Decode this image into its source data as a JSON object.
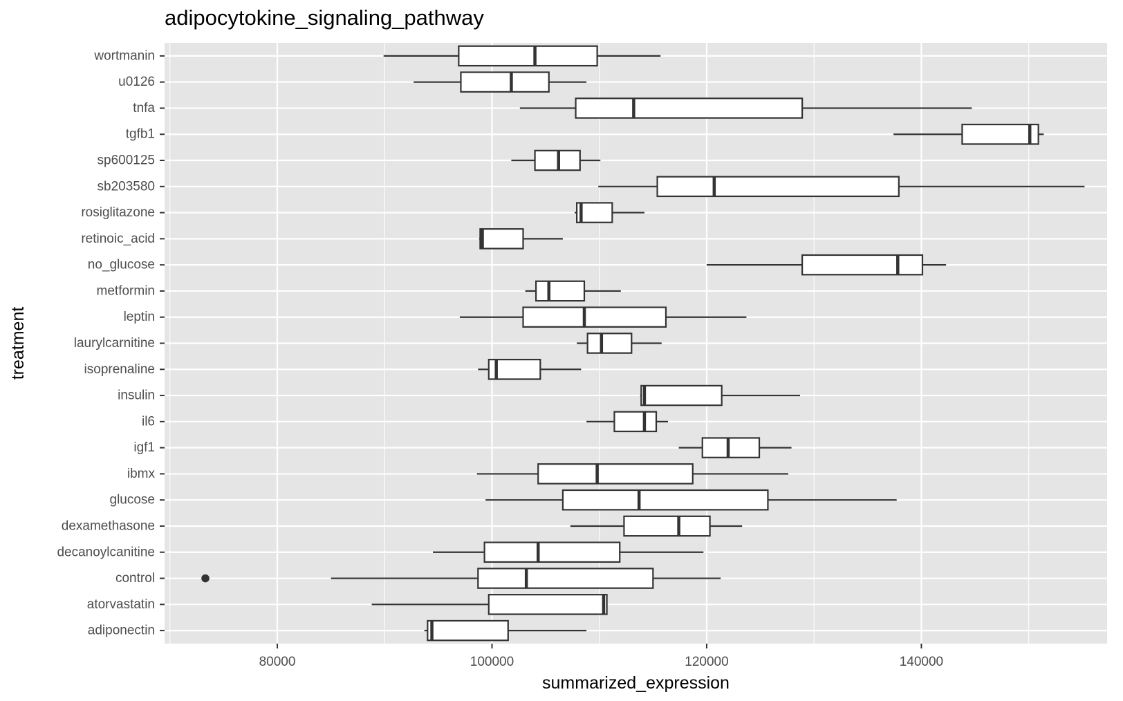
{
  "chart_data": {
    "type": "boxplot",
    "orientation": "horizontal",
    "title": "adipocytokine_signaling_pathway",
    "xlabel": "summarized_expression",
    "ylabel": "treatment",
    "xlim": [
      69500,
      157300
    ],
    "xticks": [
      80000,
      100000,
      120000,
      140000
    ],
    "xtick_labels": [
      "80000",
      "100000",
      "120000",
      "140000"
    ],
    "grid": true,
    "colors": {
      "panel": "#e5e5e5",
      "grid": "#ffffff",
      "box_stroke": "#333333",
      "box_fill": "#ffffff"
    },
    "categories": [
      "adiponectin",
      "atorvastatin",
      "control",
      "decanoylcanitine",
      "dexamethasone",
      "glucose",
      "ibmx",
      "igf1",
      "il6",
      "insulin",
      "isoprenaline",
      "laurylcarnitine",
      "leptin",
      "metformin",
      "no_glucose",
      "retinoic_acid",
      "rosiglitazone",
      "sb203580",
      "sp600125",
      "tgfb1",
      "tnfa",
      "u0126",
      "wortmanin"
    ],
    "boxes": [
      {
        "category": "adiponectin",
        "whisker_low": 93700,
        "q1": 94000,
        "median": 94400,
        "q3": 101500,
        "whisker_high": 108800,
        "outliers": []
      },
      {
        "category": "atorvastatin",
        "whisker_low": 88800,
        "q1": 99700,
        "median": 110400,
        "q3": 110700,
        "whisker_high": 110700,
        "outliers": []
      },
      {
        "category": "control",
        "whisker_low": 85000,
        "q1": 98700,
        "median": 103200,
        "q3": 115000,
        "whisker_high": 121300,
        "outliers": [
          73300
        ]
      },
      {
        "category": "decanoylcanitine",
        "whisker_low": 94500,
        "q1": 99300,
        "median": 104300,
        "q3": 111900,
        "whisker_high": 119700,
        "outliers": []
      },
      {
        "category": "dexamethasone",
        "whisker_low": 107300,
        "q1": 112300,
        "median": 117400,
        "q3": 120300,
        "whisker_high": 123300,
        "outliers": []
      },
      {
        "category": "glucose",
        "whisker_low": 99400,
        "q1": 106600,
        "median": 113700,
        "q3": 125700,
        "whisker_high": 137700,
        "outliers": []
      },
      {
        "category": "ibmx",
        "whisker_low": 98600,
        "q1": 104300,
        "median": 109800,
        "q3": 118700,
        "whisker_high": 127600,
        "outliers": []
      },
      {
        "category": "igf1",
        "whisker_low": 117400,
        "q1": 119600,
        "median": 122000,
        "q3": 124900,
        "whisker_high": 127900,
        "outliers": []
      },
      {
        "category": "il6",
        "whisker_low": 108800,
        "q1": 111400,
        "median": 114200,
        "q3": 115300,
        "whisker_high": 116400,
        "outliers": []
      },
      {
        "category": "insulin",
        "whisker_low": 113800,
        "q1": 113900,
        "median": 114200,
        "q3": 121400,
        "whisker_high": 128700,
        "outliers": []
      },
      {
        "category": "isoprenaline",
        "whisker_low": 98700,
        "q1": 99700,
        "median": 100400,
        "q3": 104500,
        "whisker_high": 108300,
        "outliers": []
      },
      {
        "category": "laurylcarnitine",
        "whisker_low": 107900,
        "q1": 108900,
        "median": 110200,
        "q3": 113000,
        "whisker_high": 115800,
        "outliers": []
      },
      {
        "category": "leptin",
        "whisker_low": 97000,
        "q1": 102900,
        "median": 108600,
        "q3": 116200,
        "whisker_high": 123700,
        "outliers": []
      },
      {
        "category": "metformin",
        "whisker_low": 103100,
        "q1": 104100,
        "median": 105300,
        "q3": 108600,
        "whisker_high": 112000,
        "outliers": []
      },
      {
        "category": "no_glucose",
        "whisker_low": 120000,
        "q1": 128900,
        "median": 137800,
        "q3": 140100,
        "whisker_high": 142300,
        "outliers": []
      },
      {
        "category": "retinoic_acid",
        "whisker_low": 98800,
        "q1": 98900,
        "median": 99100,
        "q3": 102900,
        "whisker_high": 106600,
        "outliers": []
      },
      {
        "category": "rosiglitazone",
        "whisker_low": 107700,
        "q1": 107900,
        "median": 108300,
        "q3": 111200,
        "whisker_high": 114200,
        "outliers": []
      },
      {
        "category": "sb203580",
        "whisker_low": 109900,
        "q1": 115400,
        "median": 120700,
        "q3": 137900,
        "whisker_high": 155200,
        "outliers": []
      },
      {
        "category": "sp600125",
        "whisker_low": 101800,
        "q1": 104000,
        "median": 106200,
        "q3": 108200,
        "whisker_high": 110100,
        "outliers": []
      },
      {
        "category": "tgfb1",
        "whisker_low": 137400,
        "q1": 143800,
        "median": 150100,
        "q3": 150900,
        "whisker_high": 151400,
        "outliers": []
      },
      {
        "category": "tnfa",
        "whisker_low": 102600,
        "q1": 107800,
        "median": 113200,
        "q3": 128900,
        "whisker_high": 144700,
        "outliers": []
      },
      {
        "category": "u0126",
        "whisker_low": 92700,
        "q1": 97100,
        "median": 101800,
        "q3": 105300,
        "whisker_high": 108800,
        "outliers": []
      },
      {
        "category": "wortmanin",
        "whisker_low": 89900,
        "q1": 96900,
        "median": 104000,
        "q3": 109800,
        "whisker_high": 115700,
        "outliers": []
      }
    ]
  }
}
